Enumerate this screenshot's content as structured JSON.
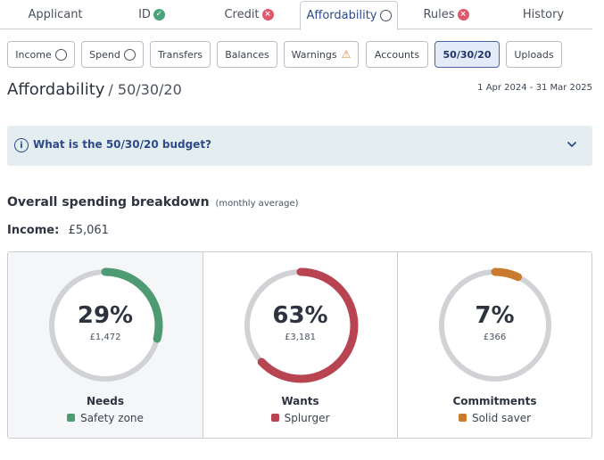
{
  "tabs": [
    {
      "label": "Applicant",
      "status": "none"
    },
    {
      "label": "ID",
      "status": "ok"
    },
    {
      "label": "Credit",
      "status": "error"
    },
    {
      "label": "Affordability",
      "status": "pending",
      "active": true
    },
    {
      "label": "Rules",
      "status": "error"
    },
    {
      "label": "History",
      "status": "none"
    }
  ],
  "subnav": [
    {
      "label": "Income",
      "indicator": "circle"
    },
    {
      "label": "Spend",
      "indicator": "circle"
    },
    {
      "label": "Transfers",
      "indicator": "none"
    },
    {
      "label": "Balances",
      "indicator": "none"
    },
    {
      "label": "Warnings",
      "indicator": "warning"
    },
    {
      "label": "Accounts",
      "indicator": "none"
    },
    {
      "label": "50/30/20",
      "indicator": "none",
      "active": true
    },
    {
      "label": "Uploads",
      "indicator": "none"
    }
  ],
  "page": {
    "title": "Affordability",
    "crumb": "/ 50/30/20",
    "date_range": "1 Apr 2024 - 31 Mar 2025"
  },
  "info": {
    "question": "What is the 50/30/20 budget?",
    "icon": "info-icon",
    "chevron": "chevron-down-icon"
  },
  "breakdown": {
    "heading": "Overall spending breakdown",
    "note": "(monthly average)",
    "income_label": "Income:",
    "income_value": "£5,061"
  },
  "cards": [
    {
      "percent_label": "29%",
      "percent": 29,
      "amount": "£1,472",
      "name": "Needs",
      "zone": "Safety zone",
      "color": "#4d9a73"
    },
    {
      "percent_label": "63%",
      "percent": 63,
      "amount": "£3,181",
      "name": "Wants",
      "zone": "Splurger",
      "color": "#b84452"
    },
    {
      "percent_label": "7%",
      "percent": 7,
      "amount": "£366",
      "name": "Commitments",
      "zone": "Solid saver",
      "color": "#c97a2e"
    }
  ],
  "colors": {
    "accent": "#2e4a8a",
    "info_bg": "#e4eef1",
    "ring_track": "#d0d2d5"
  }
}
